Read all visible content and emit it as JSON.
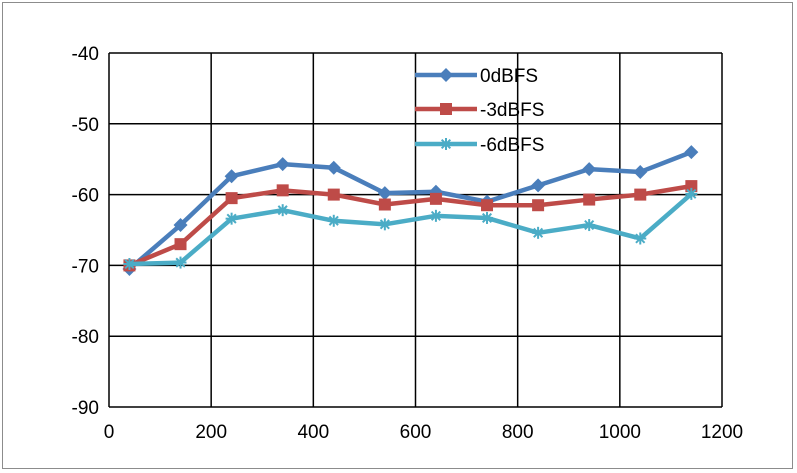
{
  "chart_data": {
    "type": "line",
    "title": "",
    "xlabel": "",
    "ylabel": "",
    "xlim": [
      0,
      1200
    ],
    "ylim": [
      -90,
      -40
    ],
    "x_ticks": [
      0,
      200,
      400,
      600,
      800,
      1000,
      1200
    ],
    "y_ticks": [
      -40,
      -50,
      -60,
      -70,
      -80,
      -90
    ],
    "x_tick_labels": [
      "0",
      "200",
      "400",
      "600",
      "800",
      "1000",
      "1200"
    ],
    "y_tick_labels": [
      "-40",
      "-50",
      "-60",
      "-70",
      "-80",
      "-90"
    ],
    "grid": true,
    "legend_position": "top-right",
    "x": [
      40,
      140,
      240,
      340,
      440,
      540,
      640,
      740,
      840,
      940,
      1040,
      1140
    ],
    "series": [
      {
        "name": "0dBFS",
        "color": "#4a7ebb",
        "marker": "diamond",
        "values": [
          -70.5,
          -64.3,
          -57.4,
          -55.7,
          -56.2,
          -59.8,
          -59.6,
          -61.0,
          -58.7,
          -56.4,
          -56.8,
          -54.0
        ]
      },
      {
        "name": "-3dBFS",
        "color": "#be4b48",
        "marker": "square",
        "values": [
          -70.0,
          -67.0,
          -60.5,
          -59.4,
          -60.0,
          -61.4,
          -60.6,
          -61.5,
          -61.5,
          -60.7,
          -60.0,
          -58.8
        ]
      },
      {
        "name": "-6dBFS",
        "color": "#4bacc6",
        "marker": "asterisk",
        "values": [
          -69.8,
          -69.6,
          -63.4,
          -62.2,
          -63.7,
          -64.2,
          -63.0,
          -63.3,
          -65.4,
          -64.3,
          -66.2,
          -59.9
        ]
      }
    ]
  }
}
